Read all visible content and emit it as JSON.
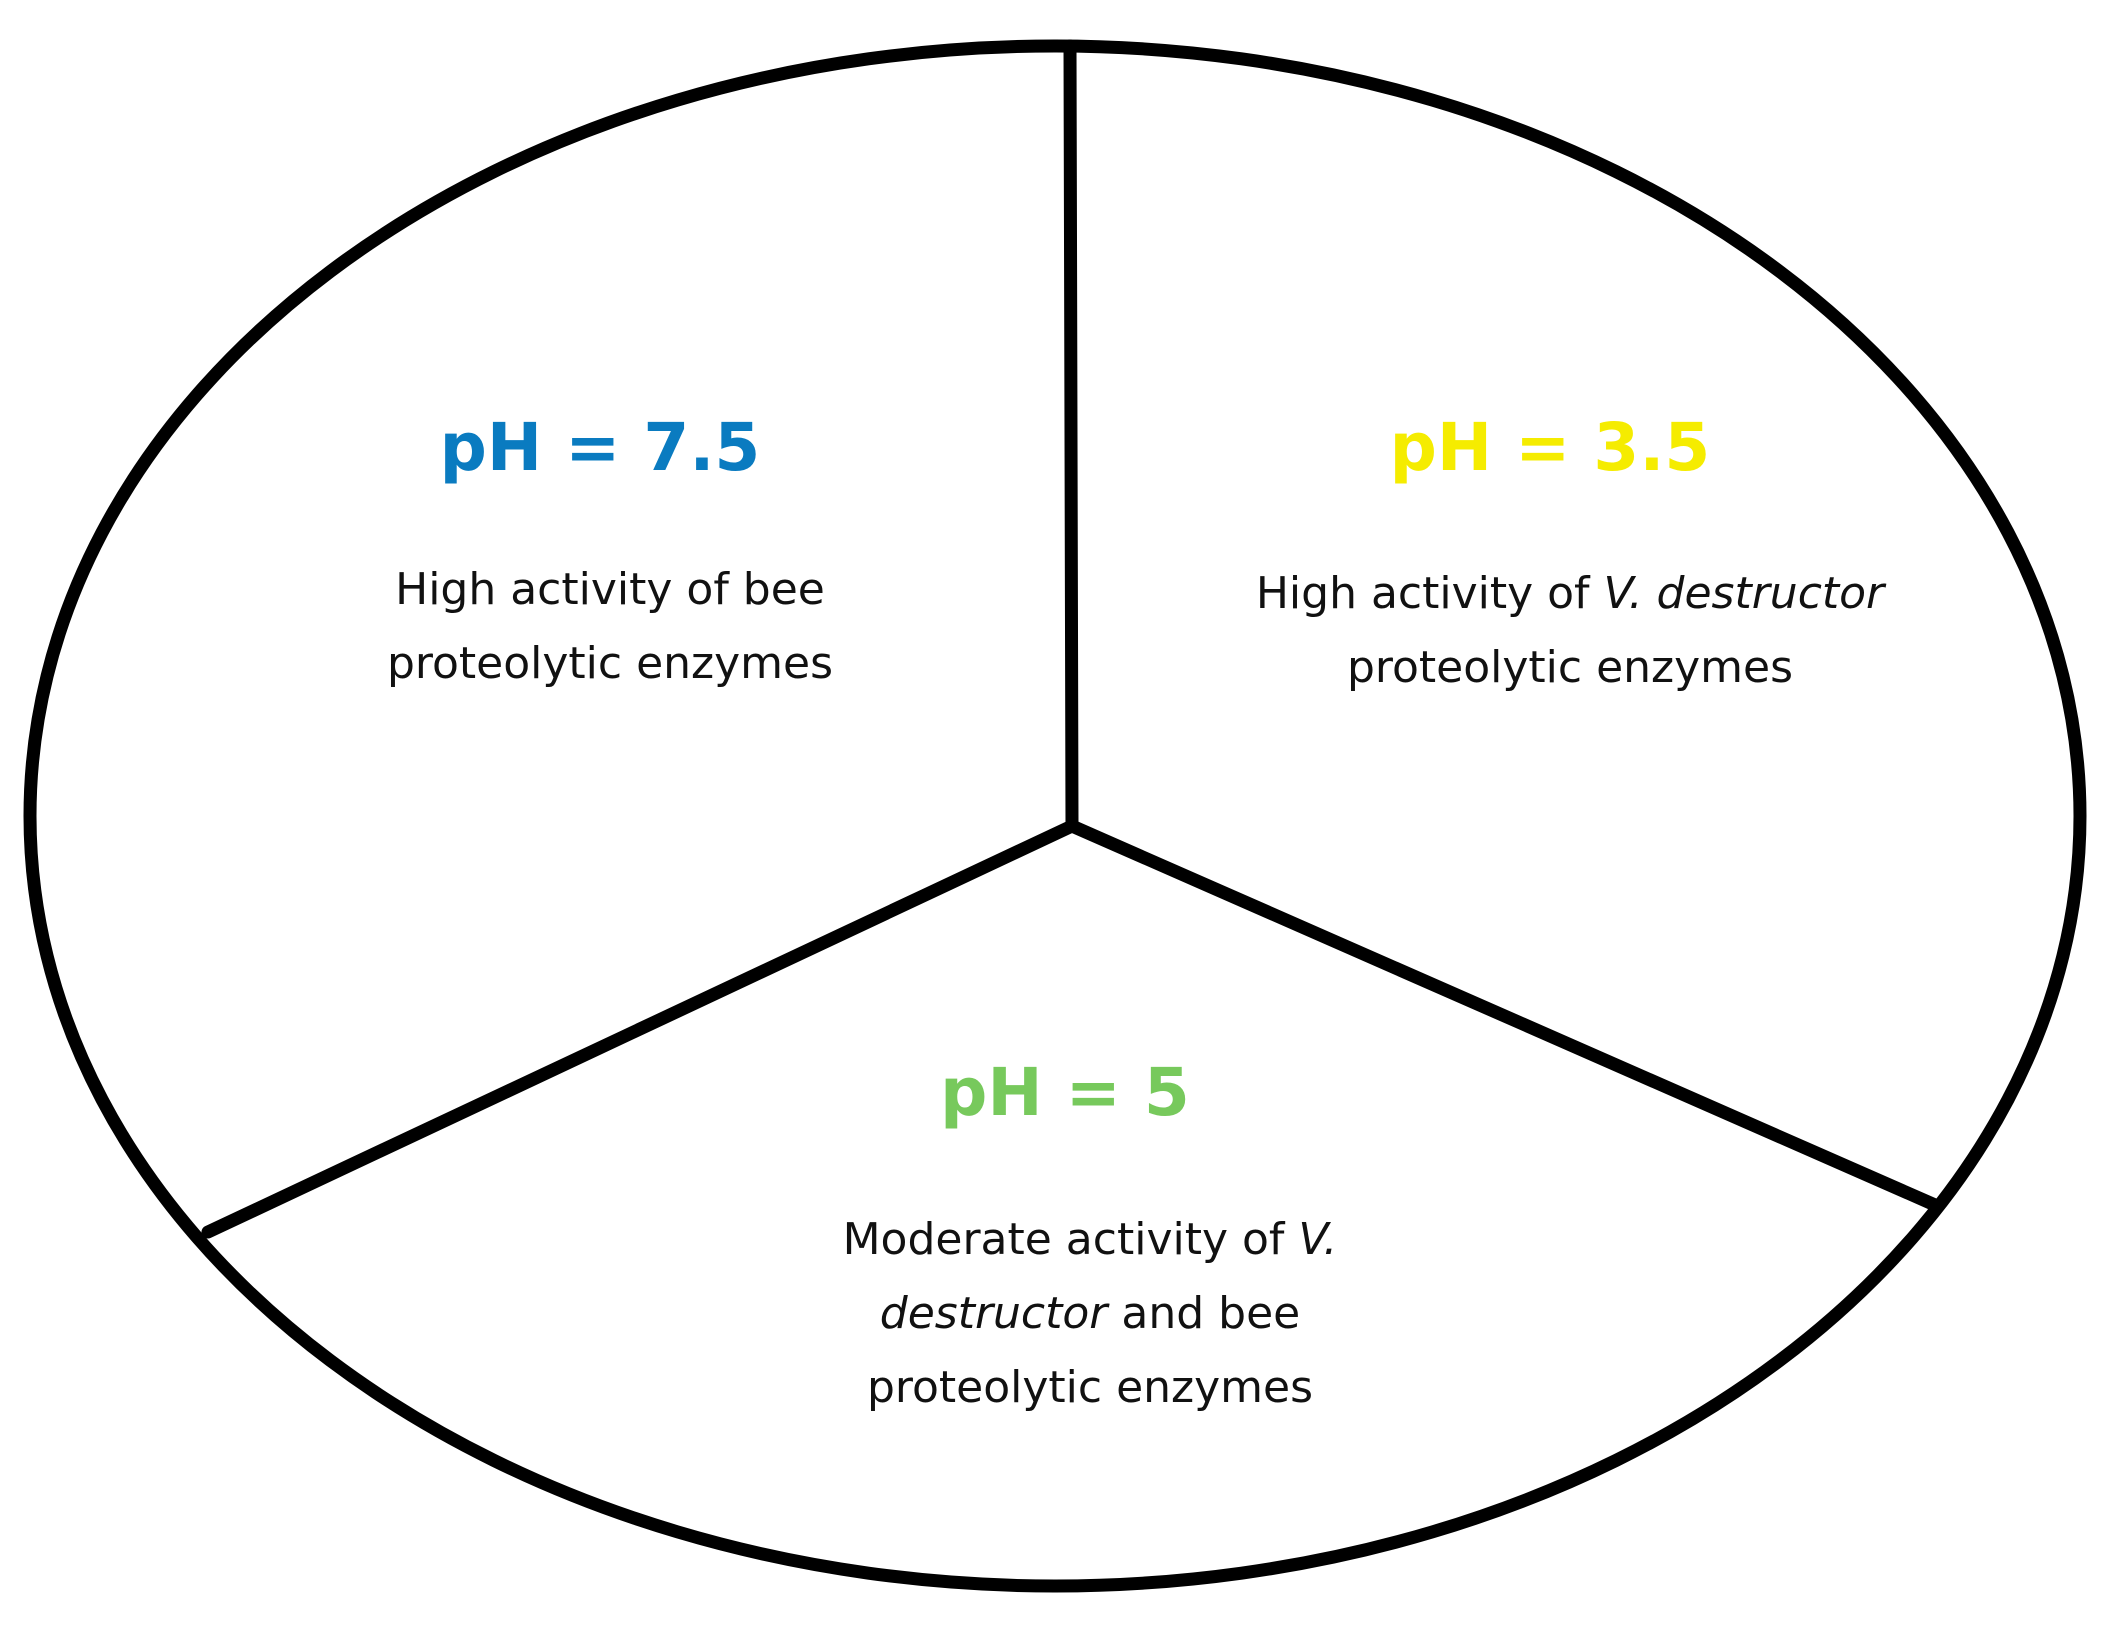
{
  "colors": {
    "outline": "#000000",
    "ph_7_5": "#0a7bc0",
    "ph_3_5": "#f5ec00",
    "ph_5": "#77c95c"
  },
  "segments": {
    "left": {
      "title": "pH = 7.5",
      "desc_line1": "High activity of bee",
      "desc_line2": "proteolytic enzymes"
    },
    "right": {
      "title": "pH = 3.5",
      "desc_line1_pre": "High activity of ",
      "desc_line1_italic": "V. destructor",
      "desc_line2": "proteolytic enzymes"
    },
    "bottom": {
      "title": "pH = 5",
      "desc_line1_pre": "Moderate activity of ",
      "desc_line1_italic": "V.",
      "desc_line2_italic": "destructor",
      "desc_line2_post": " and bee",
      "desc_line3": "proteolytic enzymes"
    }
  }
}
